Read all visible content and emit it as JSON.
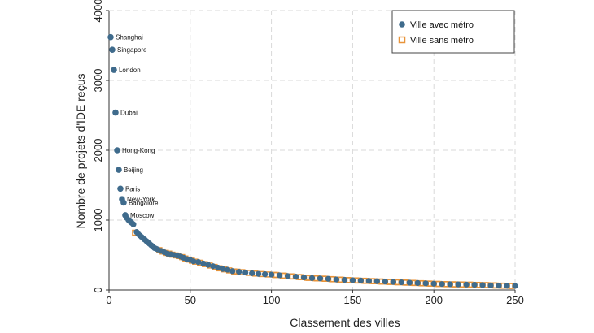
{
  "chart_data": {
    "type": "scatter",
    "xlabel": "Classement des villes",
    "ylabel": "Nombre de projets d'IDE reçus",
    "xlim": [
      0,
      250
    ],
    "ylim": [
      0,
      4000
    ],
    "xticks": [
      0,
      50,
      100,
      150,
      200,
      250
    ],
    "yticks": [
      0,
      1000,
      2000,
      3000,
      4000
    ],
    "grid": true,
    "legend_position": "top-right",
    "colors": {
      "metro": "#3f6b8c",
      "no_metro": "#e8943a",
      "grid": "#d9d9d9",
      "axis": "#333333"
    },
    "legend": [
      {
        "label": "Ville avec métro",
        "series": "metro"
      },
      {
        "label": "Ville sans métro",
        "series": "no_metro"
      }
    ],
    "labeled_points": [
      {
        "rank": 1,
        "value": 3620,
        "label": "Shanghai"
      },
      {
        "rank": 2,
        "value": 3440,
        "label": "Singapore"
      },
      {
        "rank": 3,
        "value": 3150,
        "label": "London"
      },
      {
        "rank": 4,
        "value": 2540,
        "label": "Dubai"
      },
      {
        "rank": 5,
        "value": 2000,
        "label": "Hong-Kong"
      },
      {
        "rank": 6,
        "value": 1720,
        "label": "Beijing"
      },
      {
        "rank": 7,
        "value": 1450,
        "label": "Paris"
      },
      {
        "rank": 8,
        "value": 1300,
        "label": "New-York"
      },
      {
        "rank": 9,
        "value": 1250,
        "label": "Bangalore"
      },
      {
        "rank": 10,
        "value": 1070,
        "label": "Moscow"
      }
    ],
    "series": [
      {
        "name": "Ville avec métro",
        "x": [
          11,
          12,
          13,
          14,
          15,
          17,
          18,
          19,
          20,
          21,
          22,
          23,
          24,
          25,
          26,
          27,
          28,
          29,
          30,
          32,
          34,
          36,
          38,
          40,
          42,
          44,
          46,
          48,
          50,
          52,
          55,
          58,
          61,
          64,
          67,
          70,
          73,
          76,
          80,
          84,
          88,
          92,
          96,
          100,
          105,
          110,
          115,
          120,
          125,
          130,
          135,
          140,
          145,
          150,
          155,
          160,
          165,
          170,
          175,
          180,
          185,
          190,
          195,
          200,
          205,
          210,
          215,
          220,
          225,
          230,
          235,
          240,
          245,
          250
        ],
        "y": [
          1030,
          1000,
          980,
          960,
          940,
          830,
          800,
          780,
          760,
          740,
          720,
          700,
          680,
          660,
          640,
          620,
          600,
          590,
          580,
          560,
          540,
          520,
          510,
          500,
          490,
          480,
          460,
          440,
          430,
          410,
          400,
          380,
          360,
          340,
          320,
          300,
          290,
          270,
          260,
          250,
          240,
          230,
          225,
          220,
          210,
          200,
          190,
          180,
          170,
          165,
          160,
          150,
          145,
          140,
          135,
          130,
          125,
          120,
          115,
          110,
          105,
          100,
          95,
          90,
          85,
          82,
          80,
          78,
          75,
          70,
          65,
          62,
          60,
          58
        ]
      },
      {
        "name": "Ville sans métro",
        "x": [
          16,
          31,
          33,
          35,
          37,
          39,
          41,
          43,
          45,
          47,
          49,
          51,
          53,
          56,
          59,
          62,
          65,
          68,
          71,
          74,
          77,
          79,
          82,
          86,
          90,
          94,
          98,
          102,
          103,
          107,
          108,
          112,
          113,
          117,
          118,
          122,
          123,
          127,
          128,
          132,
          133,
          137,
          138,
          142,
          143,
          147,
          148,
          152,
          153,
          157,
          158,
          162,
          163,
          167,
          168,
          172,
          173,
          177,
          178,
          182,
          183,
          187,
          188,
          192,
          193,
          197,
          198,
          202,
          203,
          207,
          208,
          212,
          213,
          217,
          218,
          222,
          223,
          227,
          228,
          232,
          233,
          237,
          238,
          242,
          243,
          247,
          248
        ],
        "y": [
          820,
          570,
          550,
          530,
          520,
          505,
          495,
          485,
          470,
          450,
          435,
          420,
          405,
          390,
          370,
          350,
          330,
          310,
          295,
          280,
          265,
          262,
          255,
          245,
          235,
          228,
          222,
          216,
          214,
          205,
          203,
          195,
          193,
          185,
          183,
          175,
          173,
          168,
          166,
          162,
          160,
          155,
          153,
          148,
          146,
          142,
          140,
          137,
          135,
          132,
          130,
          127,
          125,
          122,
          120,
          117,
          115,
          112,
          110,
          107,
          105,
          102,
          100,
          97,
          95,
          92,
          90,
          87,
          86,
          84,
          83,
          81,
          80,
          79,
          78,
          76,
          75,
          73,
          72,
          70,
          68,
          66,
          64,
          62,
          61,
          59,
          58
        ]
      }
    ]
  }
}
